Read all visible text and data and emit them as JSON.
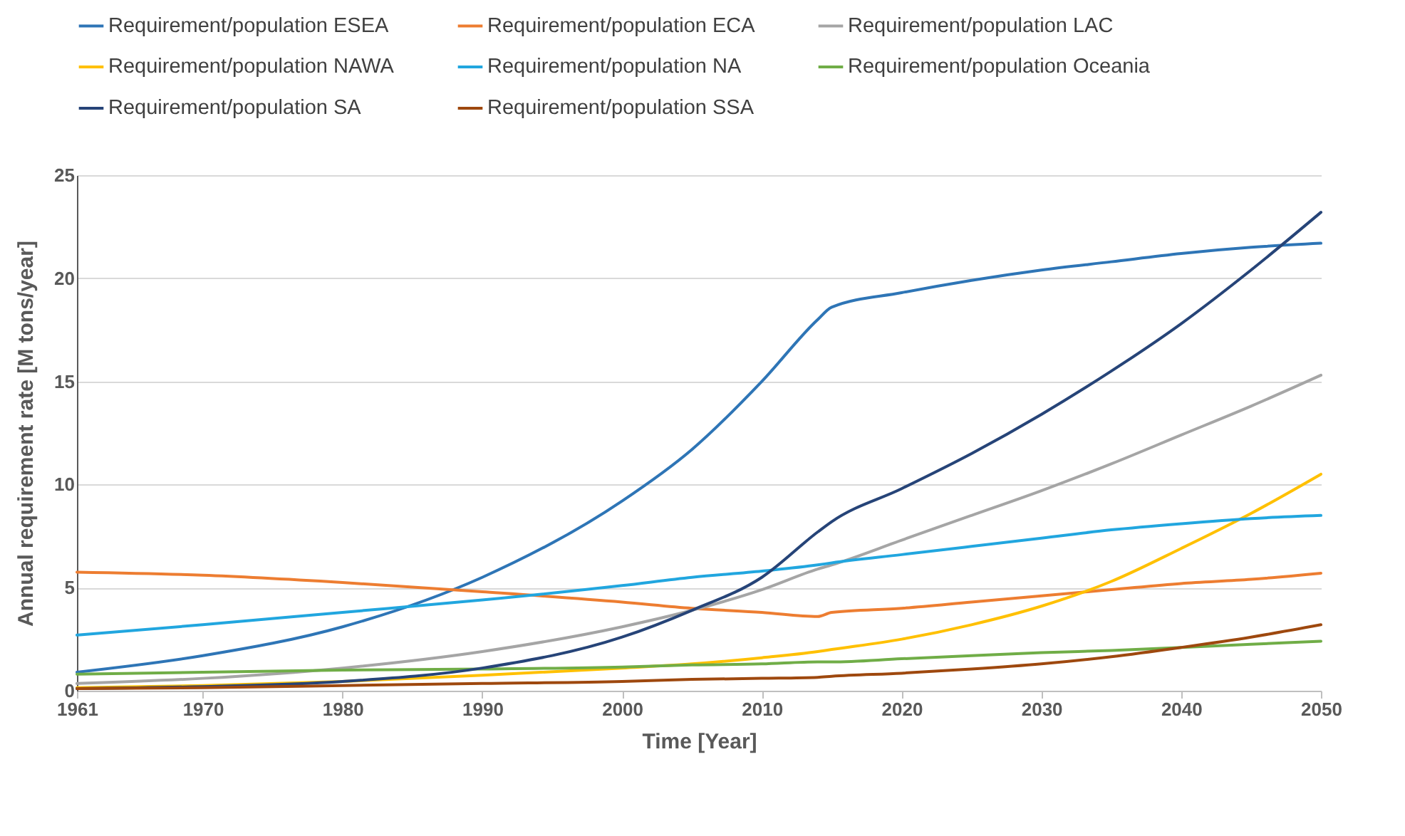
{
  "chart_data": {
    "type": "line",
    "xlabel": "Time [Year]",
    "ylabel": "Annual requirement rate [M tons/year]",
    "x": [
      1961,
      1970,
      1980,
      1990,
      2000,
      2005,
      2010,
      2014,
      2015,
      2020,
      2025,
      2030,
      2035,
      2040,
      2045,
      2050
    ],
    "series": [
      {
        "name": "Requirement/population ESEA",
        "color": "#2e75b6",
        "values": [
          0.9,
          1.7,
          3.1,
          5.5,
          9.2,
          11.7,
          15.0,
          18.0,
          18.6,
          19.3,
          19.9,
          20.4,
          20.8,
          21.2,
          21.5,
          21.7
        ]
      },
      {
        "name": "Requirement/population ECA",
        "color": "#ed7d31",
        "values": [
          5.75,
          5.6,
          5.25,
          4.8,
          4.3,
          4.0,
          3.8,
          3.6,
          3.8,
          4.0,
          4.3,
          4.6,
          4.9,
          5.2,
          5.4,
          5.7
        ]
      },
      {
        "name": "Requirement/population LAC",
        "color": "#a5a5a5",
        "values": [
          0.35,
          0.6,
          1.1,
          1.9,
          3.1,
          3.9,
          4.9,
          5.9,
          6.1,
          7.3,
          8.5,
          9.7,
          11.0,
          12.4,
          13.8,
          15.3
        ]
      },
      {
        "name": "Requirement/population NAWA",
        "color": "#ffc000",
        "values": [
          0.15,
          0.25,
          0.45,
          0.75,
          1.1,
          1.3,
          1.6,
          1.9,
          2.0,
          2.5,
          3.2,
          4.1,
          5.3,
          6.9,
          8.6,
          10.5
        ]
      },
      {
        "name": "Requirement/population NA",
        "color": "#21a6df",
        "values": [
          2.7,
          3.2,
          3.8,
          4.4,
          5.1,
          5.5,
          5.8,
          6.1,
          6.2,
          6.6,
          7.0,
          7.4,
          7.8,
          8.1,
          8.35,
          8.5
        ]
      },
      {
        "name": "Requirement/population Oceania",
        "color": "#70ad47",
        "values": [
          0.8,
          0.9,
          1.0,
          1.05,
          1.15,
          1.25,
          1.3,
          1.4,
          1.4,
          1.55,
          1.7,
          1.85,
          1.95,
          2.1,
          2.25,
          2.4
        ]
      },
      {
        "name": "Requirement/population SA",
        "color": "#264478",
        "values": [
          0.1,
          0.2,
          0.45,
          1.1,
          2.6,
          3.9,
          5.5,
          7.7,
          8.2,
          9.8,
          11.5,
          13.4,
          15.5,
          17.8,
          20.4,
          23.2
        ]
      },
      {
        "name": "Requirement/population SSA",
        "color": "#9e480e",
        "values": [
          0.1,
          0.15,
          0.25,
          0.35,
          0.45,
          0.55,
          0.6,
          0.65,
          0.7,
          0.85,
          1.05,
          1.3,
          1.65,
          2.1,
          2.6,
          3.2
        ]
      }
    ],
    "xlim": [
      1961,
      2050
    ],
    "xticks": [
      1961,
      1970,
      1980,
      1990,
      2000,
      2010,
      2020,
      2030,
      2040,
      2050
    ],
    "ylim": [
      0,
      25
    ],
    "yticks": [
      0,
      5,
      10,
      15,
      20,
      25
    ],
    "grid": "y",
    "legend": "top"
  }
}
